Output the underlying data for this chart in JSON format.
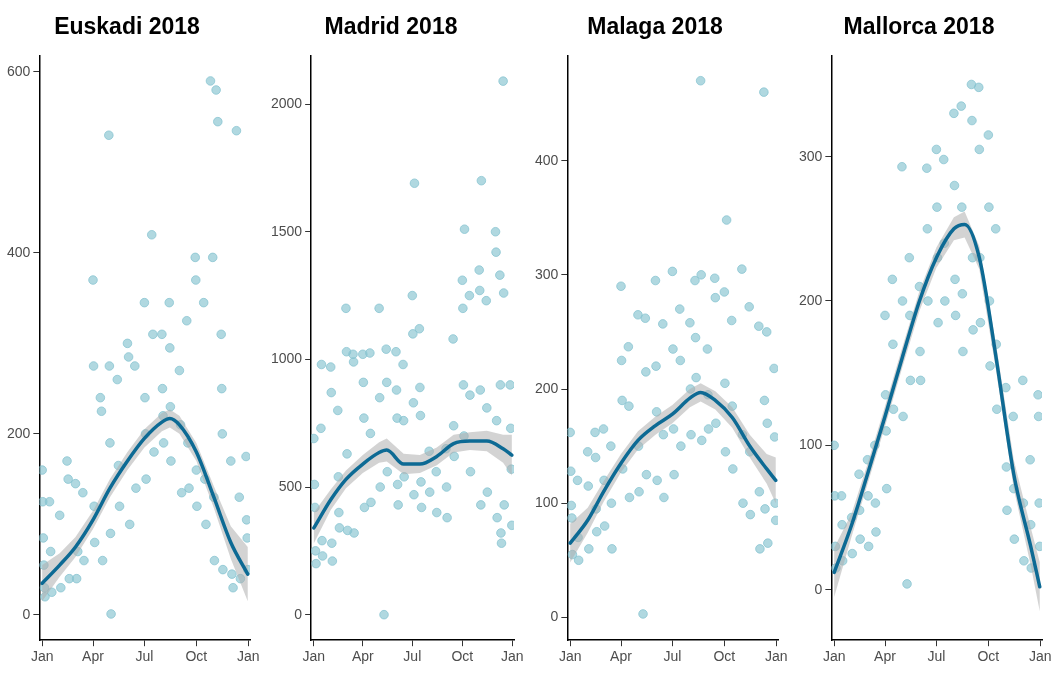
{
  "chart_data": [
    {
      "type": "scatter",
      "title": "Euskadi 2018",
      "legend": false,
      "xlim": [
        "2017-12-27",
        "2019-01-04"
      ],
      "xticks": [
        {
          "value": "2018-01-01",
          "label": "Jan"
        },
        {
          "value": "2018-04-01",
          "label": "Apr"
        },
        {
          "value": "2018-07-01",
          "label": "Jul"
        },
        {
          "value": "2018-10-01",
          "label": "Oct"
        },
        {
          "value": "2019-01-01",
          "label": "Jan"
        }
      ],
      "ylim": [
        -28,
        618
      ],
      "yticks": [
        0,
        200,
        400,
        600
      ],
      "series": [
        {
          "marker": "circle",
          "color": "#86c3d0",
          "x": [
            "2018-01-01",
            "2018-01-02",
            "2018-01-03",
            "2018-01-04",
            "2018-01-05",
            "2018-01-06",
            "2018-01-14",
            "2018-01-16",
            "2018-01-18",
            "2018-02-01",
            "2018-02-03",
            "2018-02-14",
            "2018-02-16",
            "2018-02-18",
            "2018-03-01",
            "2018-03-03",
            "2018-03-05",
            "2018-03-14",
            "2018-03-16",
            "2018-04-01",
            "2018-04-02",
            "2018-04-03",
            "2018-04-04",
            "2018-04-14",
            "2018-04-16",
            "2018-04-18",
            "2018-04-29",
            "2018-04-30",
            "2018-05-01",
            "2018-05-02",
            "2018-05-03",
            "2018-05-14",
            "2018-05-16",
            "2018-05-18",
            "2018-06-01",
            "2018-06-03",
            "2018-06-05",
            "2018-06-14",
            "2018-06-16",
            "2018-07-01",
            "2018-07-02",
            "2018-07-03",
            "2018-07-04",
            "2018-07-14",
            "2018-07-16",
            "2018-07-18",
            "2018-08-01",
            "2018-08-02",
            "2018-08-03",
            "2018-08-04",
            "2018-08-14",
            "2018-08-15",
            "2018-08-16",
            "2018-08-17",
            "2018-09-01",
            "2018-09-03",
            "2018-09-05",
            "2018-09-14",
            "2018-09-16",
            "2018-09-18",
            "2018-09-29",
            "2018-09-30",
            "2018-10-01",
            "2018-10-02",
            "2018-10-26",
            "2018-10-14",
            "2018-10-16",
            "2018-10-18",
            "2018-10-30",
            "2018-11-05",
            "2018-11-01",
            "2018-11-02",
            "2018-11-08",
            "2018-11-14",
            "2018-11-15",
            "2018-11-16",
            "2018-11-17",
            "2018-12-01",
            "2018-12-03",
            "2018-12-05",
            "2018-12-11",
            "2018-12-16",
            "2018-12-18",
            "2018-12-28",
            "2018-12-29",
            "2018-12-30",
            "2018-12-31"
          ],
          "values": [
            160,
            125,
            85,
            55,
            30,
            20,
            125,
            70,
            25,
            110,
            30,
            170,
            150,
            40,
            145,
            40,
            70,
            135,
            60,
            370,
            275,
            120,
            80,
            240,
            225,
            60,
            530,
            275,
            190,
            90,
            1,
            260,
            165,
            120,
            300,
            285,
            100,
            275,
            140,
            345,
            240,
            200,
            150,
            420,
            310,
            180,
            310,
            250,
            220,
            190,
            345,
            295,
            230,
            170,
            270,
            210,
            135,
            325,
            190,
            140,
            395,
            370,
            160,
            120,
            590,
            345,
            150,
            100,
            395,
            580,
            130,
            60,
            545,
            310,
            250,
            200,
            50,
            170,
            45,
            30,
            535,
            130,
            40,
            175,
            105,
            85,
            50
          ]
        },
        {
          "type": "line",
          "marker": "none",
          "color": "#0d6a94",
          "line_style": "solid",
          "x": [
            "2018-01-01",
            "2018-02-01",
            "2018-03-01",
            "2018-04-01",
            "2018-05-01",
            "2018-06-01",
            "2018-07-01",
            "2018-08-01",
            "2018-08-15",
            "2018-09-01",
            "2018-10-01",
            "2018-11-01",
            "2018-12-01",
            "2018-12-31"
          ],
          "values": [
            35,
            55,
            75,
            105,
            140,
            170,
            195,
            213,
            217,
            210,
            180,
            130,
            80,
            45
          ],
          "lower": [
            15,
            42,
            64,
            95,
            130,
            160,
            185,
            203,
            207,
            200,
            170,
            118,
            62,
            15
          ],
          "upper": [
            55,
            68,
            86,
            115,
            150,
            180,
            205,
            223,
            227,
            220,
            190,
            142,
            98,
            75
          ]
        }
      ]
    },
    {
      "type": "scatter",
      "title": "Madrid 2018",
      "legend": false,
      "xlim": [
        "2017-12-27",
        "2019-01-04"
      ],
      "xticks": [
        {
          "value": "2018-01-01",
          "label": "Jan"
        },
        {
          "value": "2018-04-01",
          "label": "Apr"
        },
        {
          "value": "2018-07-01",
          "label": "Jul"
        },
        {
          "value": "2018-10-01",
          "label": "Oct"
        },
        {
          "value": "2019-01-01",
          "label": "Jan"
        }
      ],
      "ylim": [
        -100,
        2190
      ],
      "yticks": [
        0,
        500,
        1000,
        1500,
        2000
      ],
      "series": [
        {
          "marker": "circle",
          "color": "#86c3d0",
          "x": [
            "2018-01-01",
            "2018-01-02",
            "2018-01-03",
            "2018-01-04",
            "2018-01-05",
            "2018-01-14",
            "2018-01-15",
            "2018-01-16",
            "2018-01-17",
            "2018-02-01",
            "2018-02-02",
            "2018-02-03",
            "2018-02-04",
            "2018-02-14",
            "2018-02-15",
            "2018-02-16",
            "2018-02-17",
            "2018-03-01",
            "2018-03-02",
            "2018-03-03",
            "2018-03-04",
            "2018-03-14",
            "2018-03-15",
            "2018-03-16",
            "2018-04-01",
            "2018-04-02",
            "2018-04-03",
            "2018-04-04",
            "2018-04-14",
            "2018-04-15",
            "2018-04-16",
            "2018-05-01",
            "2018-05-02",
            "2018-05-03",
            "2018-05-10",
            "2018-05-14",
            "2018-05-15",
            "2018-05-16",
            "2018-06-01",
            "2018-06-02",
            "2018-06-03",
            "2018-06-04",
            "2018-06-05",
            "2018-06-14",
            "2018-06-15",
            "2018-06-16",
            "2018-07-01",
            "2018-07-02",
            "2018-07-03",
            "2018-07-04",
            "2018-07-05",
            "2018-07-14",
            "2018-07-15",
            "2018-07-16",
            "2018-07-17",
            "2018-07-18",
            "2018-08-01",
            "2018-08-02",
            "2018-08-14",
            "2018-08-15",
            "2018-09-01",
            "2018-09-02",
            "2018-09-03",
            "2018-09-14",
            "2018-09-15",
            "2018-09-16",
            "2018-10-01",
            "2018-10-02",
            "2018-10-03",
            "2018-10-04",
            "2018-10-05",
            "2018-10-14",
            "2018-10-15",
            "2018-10-16",
            "2018-11-01",
            "2018-11-02",
            "2018-11-03",
            "2018-11-04",
            "2018-11-05",
            "2018-11-14",
            "2018-11-15",
            "2018-11-16",
            "2018-12-01",
            "2018-12-02",
            "2018-12-03",
            "2018-12-04",
            "2018-12-09",
            "2018-12-10",
            "2018-12-11",
            "2018-12-12",
            "2018-12-15",
            "2018-12-16",
            "2018-12-17",
            "2018-12-28",
            "2018-12-29",
            "2018-12-30",
            "2018-12-31"
          ],
          "values": [
            690,
            510,
            420,
            250,
            200,
            730,
            980,
            290,
            230,
            970,
            870,
            280,
            210,
            800,
            540,
            400,
            340,
            1200,
            1030,
            630,
            330,
            1020,
            990,
            320,
            1020,
            910,
            770,
            420,
            1025,
            710,
            440,
            1200,
            850,
            500,
            0,
            1040,
            910,
            560,
            1030,
            880,
            770,
            510,
            430,
            980,
            760,
            540,
            1250,
            1100,
            830,
            470,
            1690,
            1120,
            890,
            780,
            520,
            420,
            640,
            480,
            560,
            400,
            650,
            500,
            380,
            1080,
            740,
            620,
            1310,
            1200,
            900,
            700,
            1510,
            1250,
            860,
            560,
            1350,
            1270,
            880,
            430,
            1700,
            1230,
            810,
            480,
            1500,
            1420,
            760,
            380,
            1330,
            900,
            320,
            280,
            2090,
            1260,
            430,
            900,
            730,
            570,
            350
          ]
        },
        {
          "type": "line",
          "marker": "none",
          "color": "#0d6a94",
          "line_style": "solid",
          "x": [
            "2018-01-01",
            "2018-02-01",
            "2018-03-01",
            "2018-04-01",
            "2018-05-01",
            "2018-05-15",
            "2018-06-15",
            "2018-07-15",
            "2018-08-15",
            "2018-09-15",
            "2018-10-15",
            "2018-11-15",
            "2018-12-15",
            "2018-12-31"
          ],
          "values": [
            340,
            450,
            530,
            590,
            635,
            645,
            590,
            590,
            620,
            670,
            680,
            680,
            650,
            625
          ],
          "lower": [
            280,
            410,
            495,
            555,
            595,
            600,
            550,
            555,
            585,
            635,
            645,
            640,
            595,
            545
          ],
          "upper": [
            400,
            490,
            565,
            625,
            675,
            690,
            630,
            625,
            655,
            705,
            715,
            720,
            705,
            705
          ]
        }
      ]
    },
    {
      "type": "scatter",
      "title": "Malaga 2018",
      "legend": false,
      "xlim": [
        "2017-12-27",
        "2019-01-04"
      ],
      "xticks": [
        {
          "value": "2018-01-01",
          "label": "Jan"
        },
        {
          "value": "2018-04-01",
          "label": "Apr"
        },
        {
          "value": "2018-07-01",
          "label": "Jul"
        },
        {
          "value": "2018-10-01",
          "label": "Oct"
        },
        {
          "value": "2019-01-01",
          "label": "Jan"
        }
      ],
      "ylim": [
        -20,
        492
      ],
      "yticks": [
        0,
        100,
        200,
        300,
        400
      ],
      "series": [
        {
          "marker": "circle",
          "color": "#86c3d0",
          "x": [
            "2018-01-01",
            "2018-01-02",
            "2018-01-03",
            "2018-01-04",
            "2018-01-05",
            "2018-01-14",
            "2018-01-15",
            "2018-01-16",
            "2018-02-01",
            "2018-02-02",
            "2018-02-03",
            "2018-02-14",
            "2018-02-15",
            "2018-02-16",
            "2018-02-17",
            "2018-03-01",
            "2018-03-02",
            "2018-03-03",
            "2018-03-14",
            "2018-03-15",
            "2018-03-16",
            "2018-04-01",
            "2018-04-02",
            "2018-04-03",
            "2018-04-04",
            "2018-04-14",
            "2018-04-15",
            "2018-04-16",
            "2018-05-01",
            "2018-05-02",
            "2018-05-03",
            "2018-05-10",
            "2018-05-14",
            "2018-05-15",
            "2018-05-16",
            "2018-06-01",
            "2018-06-02",
            "2018-06-03",
            "2018-06-04",
            "2018-06-14",
            "2018-06-15",
            "2018-06-16",
            "2018-07-01",
            "2018-07-02",
            "2018-07-03",
            "2018-07-04",
            "2018-07-14",
            "2018-07-15",
            "2018-07-16",
            "2018-08-01",
            "2018-08-02",
            "2018-08-03",
            "2018-08-10",
            "2018-08-11",
            "2018-08-12",
            "2018-08-20",
            "2018-08-21",
            "2018-08-22",
            "2018-09-01",
            "2018-09-02",
            "2018-09-03",
            "2018-09-14",
            "2018-09-15",
            "2018-09-16",
            "2018-10-01",
            "2018-10-02",
            "2018-10-03",
            "2018-10-05",
            "2018-10-14",
            "2018-10-15",
            "2018-10-16",
            "2018-11-01",
            "2018-11-02",
            "2018-11-03",
            "2018-11-14",
            "2018-11-15",
            "2018-11-16",
            "2018-12-01",
            "2018-12-02",
            "2018-12-03",
            "2018-12-10",
            "2018-12-11",
            "2018-12-12",
            "2018-12-15",
            "2018-12-16",
            "2018-12-17",
            "2018-12-28",
            "2018-12-29",
            "2018-12-30",
            "2018-12-31"
          ],
          "values": [
            162,
            128,
            98,
            87,
            55,
            120,
            70,
            50,
            145,
            115,
            60,
            162,
            140,
            95,
            75,
            165,
            120,
            80,
            150,
            100,
            60,
            290,
            225,
            190,
            130,
            237,
            185,
            105,
            265,
            150,
            110,
            3,
            262,
            215,
            125,
            295,
            220,
            180,
            120,
            257,
            160,
            105,
            303,
            235,
            165,
            125,
            270,
            225,
            150,
            258,
            200,
            160,
            295,
            245,
            210,
            470,
            300,
            155,
            235,
            195,
            165,
            297,
            280,
            170,
            285,
            205,
            145,
            348,
            260,
            185,
            130,
            305,
            160,
            100,
            272,
            145,
            90,
            255,
            110,
            60,
            460,
            190,
            95,
            250,
            170,
            65,
            218,
            158,
            100,
            85
          ]
        },
        {
          "type": "line",
          "marker": "none",
          "color": "#0d6a94",
          "line_style": "solid",
          "x": [
            "2018-01-01",
            "2018-02-01",
            "2018-03-01",
            "2018-04-01",
            "2018-05-01",
            "2018-06-01",
            "2018-07-01",
            "2018-08-01",
            "2018-08-20",
            "2018-09-15",
            "2018-10-15",
            "2018-11-15",
            "2018-12-15",
            "2018-12-31"
          ],
          "values": [
            65,
            85,
            110,
            135,
            155,
            168,
            178,
            192,
            197,
            190,
            175,
            150,
            130,
            120
          ],
          "lower": [
            48,
            74,
            101,
            127,
            147,
            160,
            170,
            184,
            189,
            182,
            166,
            140,
            117,
            100
          ],
          "upper": [
            82,
            96,
            119,
            143,
            163,
            176,
            186,
            200,
            205,
            198,
            184,
            160,
            143,
            140
          ]
        }
      ]
    },
    {
      "type": "scatter",
      "title": "Mallorca 2018",
      "legend": false,
      "xlim": [
        "2017-12-27",
        "2019-01-04"
      ],
      "xticks": [
        {
          "value": "2018-01-01",
          "label": "Jan"
        },
        {
          "value": "2018-04-01",
          "label": "Apr"
        },
        {
          "value": "2018-07-01",
          "label": "Jul"
        },
        {
          "value": "2018-10-01",
          "label": "Oct"
        },
        {
          "value": "2019-01-01",
          "label": "Jan"
        }
      ],
      "ylim": [
        -35,
        370
      ],
      "yticks": [
        0,
        100,
        200,
        300
      ],
      "series": [
        {
          "marker": "circle",
          "color": "#86c3d0",
          "x": [
            "2018-01-01",
            "2018-01-02",
            "2018-01-03",
            "2018-01-04",
            "2018-01-14",
            "2018-01-15",
            "2018-01-16",
            "2018-02-01",
            "2018-02-02",
            "2018-02-14",
            "2018-02-15",
            "2018-02-16",
            "2018-03-01",
            "2018-03-02",
            "2018-03-03",
            "2018-03-14",
            "2018-03-15",
            "2018-03-16",
            "2018-04-01",
            "2018-04-02",
            "2018-04-03",
            "2018-04-04",
            "2018-04-14",
            "2018-04-15",
            "2018-04-16",
            "2018-05-01",
            "2018-05-02",
            "2018-05-03",
            "2018-05-10",
            "2018-05-14",
            "2018-05-15",
            "2018-05-16",
            "2018-06-01",
            "2018-06-02",
            "2018-06-03",
            "2018-06-14",
            "2018-06-15",
            "2018-06-16",
            "2018-07-01",
            "2018-07-02",
            "2018-07-03",
            "2018-07-04",
            "2018-07-14",
            "2018-07-15",
            "2018-07-16",
            "2018-08-01",
            "2018-08-02",
            "2018-08-03",
            "2018-08-04",
            "2018-08-14",
            "2018-08-15",
            "2018-08-16",
            "2018-08-17",
            "2018-09-01",
            "2018-09-02",
            "2018-09-03",
            "2018-09-04",
            "2018-09-14",
            "2018-09-15",
            "2018-09-16",
            "2018-09-17",
            "2018-10-01",
            "2018-10-02",
            "2018-10-03",
            "2018-10-04",
            "2018-10-14",
            "2018-10-15",
            "2018-10-16",
            "2018-11-01",
            "2018-11-02",
            "2018-11-03",
            "2018-11-14",
            "2018-11-15",
            "2018-11-16",
            "2018-12-01",
            "2018-12-02",
            "2018-12-03",
            "2018-12-14",
            "2018-12-15",
            "2018-12-16",
            "2018-12-28",
            "2018-12-29",
            "2018-12-30",
            "2018-12-31"
          ],
          "values": [
            100,
            65,
            30,
            15,
            65,
            45,
            20,
            50,
            25,
            80,
            55,
            35,
            90,
            65,
            30,
            100,
            60,
            40,
            190,
            135,
            110,
            70,
            215,
            170,
            125,
            293,
            200,
            120,
            4,
            230,
            190,
            145,
            210,
            165,
            145,
            292,
            250,
            200,
            305,
            265,
            230,
            185,
            298,
            240,
            200,
            330,
            280,
            215,
            190,
            335,
            265,
            205,
            165,
            350,
            325,
            230,
            180,
            348,
            305,
            230,
            185,
            315,
            265,
            200,
            155,
            250,
            170,
            125,
            140,
            85,
            55,
            120,
            70,
            35,
            145,
            60,
            20,
            90,
            45,
            15,
            135,
            120,
            60,
            30
          ]
        },
        {
          "type": "line",
          "marker": "none",
          "color": "#0d6a94",
          "line_style": "solid",
          "x": [
            "2018-01-01",
            "2018-02-01",
            "2018-03-01",
            "2018-04-01",
            "2018-05-01",
            "2018-06-01",
            "2018-07-01",
            "2018-08-01",
            "2018-08-20",
            "2018-09-15",
            "2018-10-15",
            "2018-11-15",
            "2018-12-15",
            "2018-12-31"
          ],
          "values": [
            12,
            45,
            80,
            120,
            160,
            200,
            230,
            250,
            253,
            230,
            160,
            80,
            30,
            2
          ],
          "lower": [
            -5,
            37,
            73,
            113,
            153,
            193,
            223,
            242,
            244,
            222,
            151,
            70,
            17,
            -15
          ],
          "upper": [
            29,
            53,
            87,
            127,
            167,
            207,
            237,
            258,
            262,
            238,
            169,
            90,
            43,
            19
          ]
        }
      ]
    }
  ]
}
